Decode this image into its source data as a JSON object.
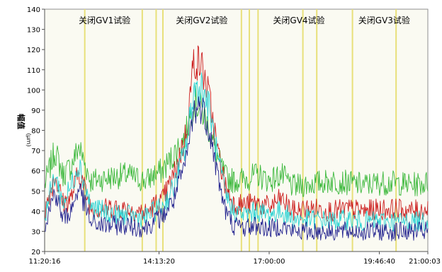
{
  "chart_data": {
    "type": "line",
    "title": "",
    "xlabel": "",
    "ylabel": "幅值",
    "yunit": "(μm)",
    "ylim": [
      20,
      140
    ],
    "yticks": [
      20,
      30,
      40,
      50,
      60,
      70,
      80,
      90,
      100,
      110,
      120,
      130,
      140
    ],
    "xticks": [
      "11:20:16",
      "14:13:20",
      "17:00:00",
      "19:46:40",
      "21:00:03"
    ],
    "xtick_hours": [
      11.3378,
      14.2222,
      17.0,
      19.7778,
      21.0008
    ],
    "xlim_hours": [
      11.3378,
      21.0008
    ],
    "annotations": [
      "关闭GV1试验",
      "关闭GV2试验",
      "关闭GV4试验",
      "关闭GV3试验"
    ],
    "event_lines_hours": [
      12.35,
      13.8,
      14.15,
      14.32,
      16.3,
      16.5,
      16.72,
      17.85,
      18.2,
      19.1,
      20.2
    ],
    "grid": false,
    "background_color": "#fafaf2",
    "event_line_color": "#e8e07a",
    "series": [
      {
        "color": "#3cb83c",
        "x_hours": [
          11.34,
          11.6,
          11.8,
          12.0,
          12.2,
          12.5,
          12.8,
          13.1,
          13.4,
          13.7,
          13.9,
          14.1,
          14.3,
          14.6,
          14.9,
          15.1,
          15.3,
          15.5,
          15.7,
          15.9,
          16.1,
          16.4,
          16.7,
          17.0,
          17.3,
          17.6,
          17.9,
          18.2,
          18.6,
          19.0,
          19.4,
          19.8,
          20.2,
          20.6,
          21.0
        ],
        "y": [
          53,
          70,
          58,
          62,
          72,
          55,
          56,
          57,
          58,
          56,
          55,
          58,
          60,
          68,
          78,
          95,
          90,
          80,
          66,
          57,
          55,
          56,
          58,
          55,
          58,
          52,
          53,
          54,
          55,
          54,
          53,
          54,
          54,
          53,
          54
        ]
      },
      {
        "color": "#cc1e1e",
        "x_hours": [
          11.34,
          11.6,
          11.8,
          12.0,
          12.2,
          12.5,
          12.8,
          13.1,
          13.4,
          13.7,
          13.9,
          14.1,
          14.3,
          14.6,
          14.9,
          15.1,
          15.3,
          15.5,
          15.7,
          15.9,
          16.1,
          16.4,
          16.7,
          17.0,
          17.3,
          17.6,
          17.9,
          18.2,
          18.6,
          19.0,
          19.4,
          19.8,
          20.2,
          20.6,
          21.0
        ],
        "y": [
          40,
          58,
          44,
          46,
          60,
          42,
          41,
          42,
          41,
          40,
          39,
          43,
          45,
          58,
          78,
          115,
          112,
          95,
          70,
          52,
          44,
          43,
          44,
          42,
          46,
          40,
          41,
          41,
          40,
          41,
          40,
          41,
          41,
          40,
          41
        ]
      },
      {
        "color": "#27d2d2",
        "x_hours": [
          11.34,
          11.6,
          11.8,
          12.0,
          12.2,
          12.5,
          12.8,
          13.1,
          13.4,
          13.7,
          13.9,
          14.1,
          14.3,
          14.6,
          14.9,
          15.1,
          15.3,
          15.5,
          15.7,
          15.9,
          16.1,
          16.4,
          16.7,
          17.0,
          17.3,
          17.6,
          17.9,
          18.2,
          18.6,
          19.0,
          19.4,
          19.8,
          20.2,
          20.6,
          21.0
        ],
        "y": [
          38,
          58,
          44,
          52,
          64,
          42,
          40,
          38,
          38,
          37,
          37,
          40,
          42,
          52,
          72,
          100,
          102,
          90,
          66,
          48,
          40,
          38,
          40,
          38,
          40,
          36,
          36,
          36,
          35,
          36,
          35,
          35,
          35,
          35,
          35
        ]
      },
      {
        "color": "#23238f",
        "x_hours": [
          11.34,
          11.6,
          11.8,
          12.0,
          12.2,
          12.5,
          12.8,
          13.1,
          13.4,
          13.7,
          13.9,
          14.1,
          14.3,
          14.6,
          14.9,
          15.1,
          15.3,
          15.5,
          15.7,
          15.9,
          16.1,
          16.4,
          16.7,
          17.0,
          17.3,
          17.6,
          17.9,
          18.2,
          18.6,
          19.0,
          19.4,
          19.8,
          20.2,
          20.6,
          21.0
        ],
        "y": [
          33,
          50,
          36,
          40,
          52,
          34,
          33,
          33,
          33,
          32,
          32,
          35,
          37,
          46,
          64,
          90,
          92,
          80,
          58,
          40,
          33,
          32,
          33,
          31,
          33,
          30,
          30,
          30,
          30,
          30,
          30,
          30,
          30,
          30,
          30
        ]
      }
    ]
  }
}
